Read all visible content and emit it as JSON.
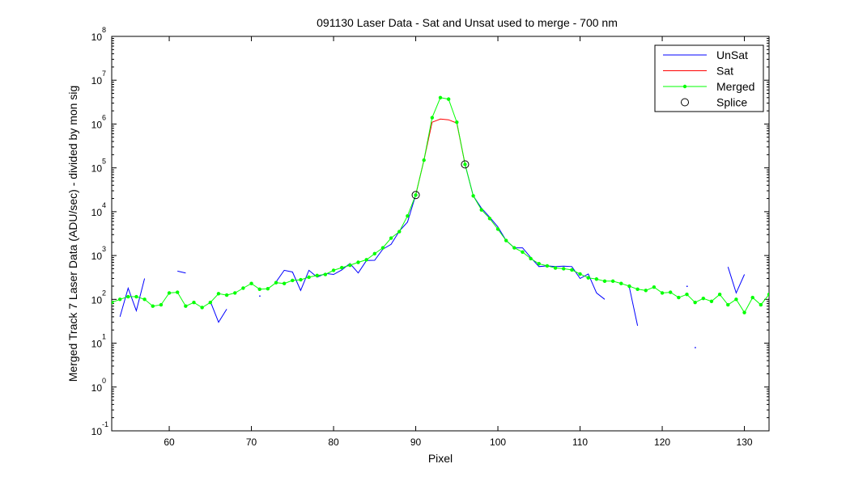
{
  "chart_data": {
    "type": "line",
    "title": "091130 Laser Data - Sat and Unsat used to merge  - 700 nm",
    "xlabel": "Pixel",
    "ylabel": "Merged Track 7 Laser Data (ADU/sec) - divided by mon sig",
    "xlim": [
      53,
      133
    ],
    "ylim_exponents": [
      -1,
      8
    ],
    "yscale": "log",
    "x_ticks": [
      "60",
      "70",
      "80",
      "90",
      "100",
      "110",
      "120",
      "130"
    ],
    "y_tick_base": "10",
    "y_tick_exponents": [
      "-1",
      "0",
      "1",
      "2",
      "3",
      "4",
      "5",
      "6",
      "7",
      "8"
    ],
    "legend_position": "top-right",
    "legend": [
      {
        "label": "UnSat",
        "style": "line",
        "color": "#0000ff"
      },
      {
        "label": "Sat",
        "style": "line",
        "color": "#ff0000"
      },
      {
        "label": "Merged",
        "style": "line-dot",
        "color": "#00ff00"
      },
      {
        "label": "Splice",
        "style": "circle",
        "color": "#000000"
      }
    ],
    "series": [
      {
        "name": "UnSat",
        "color": "#0000ff",
        "segments": [
          [
            [
              54,
              40
            ],
            [
              55,
              180
            ],
            [
              56,
              55
            ],
            [
              57,
              300
            ]
          ],
          [
            [
              61,
              440
            ],
            [
              62,
              400
            ]
          ],
          [
            [
              65,
              90
            ],
            [
              66,
              30
            ],
            [
              67,
              60
            ]
          ],
          [
            [
              73,
              250
            ],
            [
              74,
              460
            ],
            [
              75,
              420
            ],
            [
              76,
              160
            ],
            [
              77,
              460
            ],
            [
              78,
              320
            ],
            [
              79,
              390
            ],
            [
              80,
              370
            ],
            [
              81,
              470
            ],
            [
              82,
              660
            ],
            [
              83,
              400
            ],
            [
              84,
              770
            ],
            [
              85,
              780
            ],
            [
              86,
              1400
            ],
            [
              87,
              1800
            ],
            [
              88,
              3600
            ],
            [
              89,
              5800
            ],
            [
              90,
              24000
            ]
          ],
          [
            [
              96,
              120000
            ],
            [
              97,
              23000
            ],
            [
              98,
              12000
            ],
            [
              99,
              7500
            ],
            [
              100,
              4500
            ],
            [
              101,
              2200
            ],
            [
              102,
              1500
            ],
            [
              103,
              1500
            ],
            [
              104,
              900
            ],
            [
              105,
              560
            ],
            [
              106,
              580
            ],
            [
              107,
              560
            ],
            [
              108,
              570
            ],
            [
              109,
              560
            ],
            [
              110,
              300
            ],
            [
              111,
              380
            ],
            [
              112,
              140
            ],
            [
              113,
              100
            ]
          ],
          [
            [
              116,
              190
            ],
            [
              117,
              25
            ]
          ],
          [
            [
              128,
              550
            ],
            [
              129,
              140
            ],
            [
              130,
              370
            ]
          ]
        ]
      },
      {
        "name": "Sat",
        "color": "#ff0000",
        "segments": [
          [
            [
              90,
              24000
            ],
            [
              91,
              150000
            ],
            [
              92,
              1100000
            ],
            [
              93,
              1300000
            ],
            [
              94,
              1250000
            ],
            [
              95,
              1050000
            ],
            [
              96,
              120000
            ]
          ]
        ]
      },
      {
        "name": "Merged",
        "color": "#00ff00",
        "segments": [
          [
            [
              53,
              85
            ],
            [
              54,
              100
            ],
            [
              55,
              115
            ],
            [
              56,
              115
            ],
            [
              57,
              100
            ],
            [
              58,
              70
            ],
            [
              59,
              75
            ],
            [
              60,
              140
            ],
            [
              61,
              145
            ],
            [
              62,
              70
            ],
            [
              63,
              85
            ],
            [
              64,
              65
            ],
            [
              65,
              85
            ],
            [
              66,
              135
            ],
            [
              67,
              125
            ],
            [
              68,
              140
            ],
            [
              69,
              180
            ],
            [
              70,
              230
            ],
            [
              71,
              170
            ],
            [
              72,
              175
            ],
            [
              73,
              240
            ],
            [
              74,
              230
            ],
            [
              75,
              270
            ],
            [
              76,
              280
            ],
            [
              77,
              320
            ],
            [
              78,
              350
            ],
            [
              79,
              370
            ],
            [
              80,
              460
            ],
            [
              81,
              530
            ],
            [
              82,
              600
            ],
            [
              83,
              700
            ],
            [
              84,
              800
            ],
            [
              85,
              1100
            ],
            [
              86,
              1500
            ],
            [
              87,
              2500
            ],
            [
              88,
              3500
            ],
            [
              89,
              8000
            ],
            [
              90,
              24000
            ],
            [
              91,
              150000
            ],
            [
              92,
              1400000
            ],
            [
              93,
              4000000
            ],
            [
              94,
              3700000
            ],
            [
              95,
              1100000
            ],
            [
              96,
              120000
            ],
            [
              97,
              23000
            ],
            [
              98,
              11000
            ],
            [
              99,
              7000
            ],
            [
              100,
              4000
            ],
            [
              101,
              2200
            ],
            [
              102,
              1500
            ],
            [
              103,
              1200
            ],
            [
              104,
              850
            ],
            [
              105,
              650
            ],
            [
              106,
              580
            ],
            [
              107,
              520
            ],
            [
              108,
              500
            ],
            [
              109,
              470
            ],
            [
              110,
              380
            ],
            [
              111,
              310
            ],
            [
              112,
              290
            ],
            [
              113,
              260
            ],
            [
              114,
              260
            ],
            [
              115,
              230
            ],
            [
              116,
              200
            ],
            [
              117,
              170
            ],
            [
              118,
              160
            ],
            [
              119,
              190
            ],
            [
              120,
              140
            ],
            [
              121,
              145
            ],
            [
              122,
              110
            ],
            [
              123,
              130
            ],
            [
              124,
              85
            ],
            [
              125,
              105
            ],
            [
              126,
              90
            ],
            [
              127,
              130
            ],
            [
              128,
              75
            ],
            [
              129,
              100
            ],
            [
              130,
              50
            ],
            [
              131,
              110
            ],
            [
              132,
              75
            ],
            [
              133,
              130
            ]
          ]
        ]
      },
      {
        "name": "Splice",
        "color": "#000000",
        "points": [
          [
            90,
            24000
          ],
          [
            96,
            120000
          ]
        ]
      }
    ],
    "stray_points": [
      [
        71,
        120
      ],
      [
        123,
        200
      ],
      [
        124,
        8
      ]
    ]
  }
}
